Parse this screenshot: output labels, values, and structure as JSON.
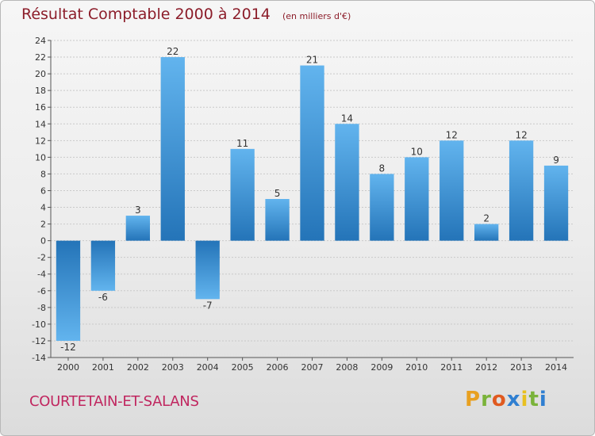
{
  "title": "Résultat Comptable 2000 à 2014",
  "unit": "(en milliers d'€)",
  "commune": "COURTETAIN-ET-SALANS",
  "logo": {
    "letters": [
      "P",
      "r",
      "o",
      "x",
      "i",
      "t",
      "i"
    ],
    "colors": [
      "#e8a020",
      "#7ab33a",
      "#e05a20",
      "#2f7fd1",
      "#e8c020",
      "#7ab33a",
      "#2f7fd1"
    ]
  },
  "colors": {
    "bar_light": "#62b4ee",
    "bar_dark": "#2474b8",
    "title": "#8c1d2a",
    "commune": "#c0265f"
  },
  "chart_data": {
    "type": "bar",
    "title": "Résultat Comptable 2000 à 2014",
    "categories": [
      "2000",
      "2001",
      "2002",
      "2003",
      "2004",
      "2005",
      "2006",
      "2007",
      "2008",
      "2009",
      "2010",
      "2011",
      "2012",
      "2013",
      "2014"
    ],
    "values": [
      -12,
      -6,
      3,
      22,
      -7,
      11,
      5,
      21,
      14,
      8,
      10,
      12,
      2,
      12,
      9
    ],
    "ylim": [
      -14,
      24
    ],
    "yticks": [
      -14,
      -12,
      -10,
      -8,
      -6,
      -4,
      -2,
      0,
      2,
      4,
      6,
      8,
      10,
      12,
      14,
      16,
      18,
      20,
      22,
      24
    ],
    "xlabel": "",
    "ylabel": "",
    "grid": true
  }
}
